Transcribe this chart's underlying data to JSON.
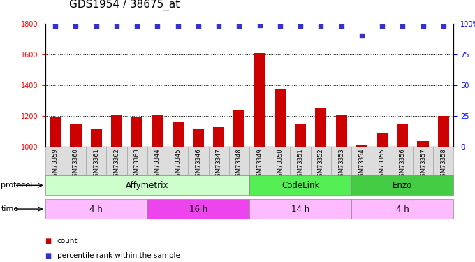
{
  "title": "GDS1954 / 38675_at",
  "samples": [
    "GSM73359",
    "GSM73360",
    "GSM73361",
    "GSM73362",
    "GSM73363",
    "GSM73344",
    "GSM73345",
    "GSM73346",
    "GSM73347",
    "GSM73348",
    "GSM73349",
    "GSM73350",
    "GSM73351",
    "GSM73352",
    "GSM73353",
    "GSM73354",
    "GSM73355",
    "GSM73356",
    "GSM73357",
    "GSM73358"
  ],
  "counts": [
    1195,
    1145,
    1115,
    1210,
    1195,
    1205,
    1165,
    1120,
    1125,
    1235,
    1610,
    1375,
    1145,
    1255,
    1210,
    1010,
    1090,
    1145,
    1035,
    1200
  ],
  "percentile_ranks": [
    98,
    98,
    98,
    98,
    98,
    98,
    98,
    98,
    98,
    98,
    99,
    98,
    98,
    98,
    98,
    90,
    98,
    98,
    98,
    98
  ],
  "bar_color": "#cc0000",
  "dot_color": "#3333cc",
  "ylim_left": [
    1000,
    1800
  ],
  "ylim_right": [
    0,
    100
  ],
  "yticks_left": [
    1000,
    1200,
    1400,
    1600,
    1800
  ],
  "yticks_right": [
    0,
    25,
    50,
    75,
    100
  ],
  "grid_ticks": [
    1200,
    1400,
    1600,
    1800
  ],
  "protocol_groups": [
    {
      "label": "Affymetrix",
      "start": 0,
      "end": 9,
      "color": "#ccffcc"
    },
    {
      "label": "CodeLink",
      "start": 10,
      "end": 14,
      "color": "#55ee55"
    },
    {
      "label": "Enzo",
      "start": 15,
      "end": 19,
      "color": "#44cc44"
    }
  ],
  "time_groups": [
    {
      "label": "4 h",
      "start": 0,
      "end": 4,
      "color": "#ffbbff"
    },
    {
      "label": "16 h",
      "start": 5,
      "end": 9,
      "color": "#ee44ee"
    },
    {
      "label": "14 h",
      "start": 10,
      "end": 14,
      "color": "#ffbbff"
    },
    {
      "label": "4 h",
      "start": 15,
      "end": 19,
      "color": "#ffbbff"
    }
  ],
  "legend_items": [
    {
      "label": "count",
      "color": "#cc0000"
    },
    {
      "label": "percentile rank within the sample",
      "color": "#3333cc"
    }
  ],
  "title_fontsize": 11,
  "tick_fontsize": 7,
  "bar_width": 0.55
}
